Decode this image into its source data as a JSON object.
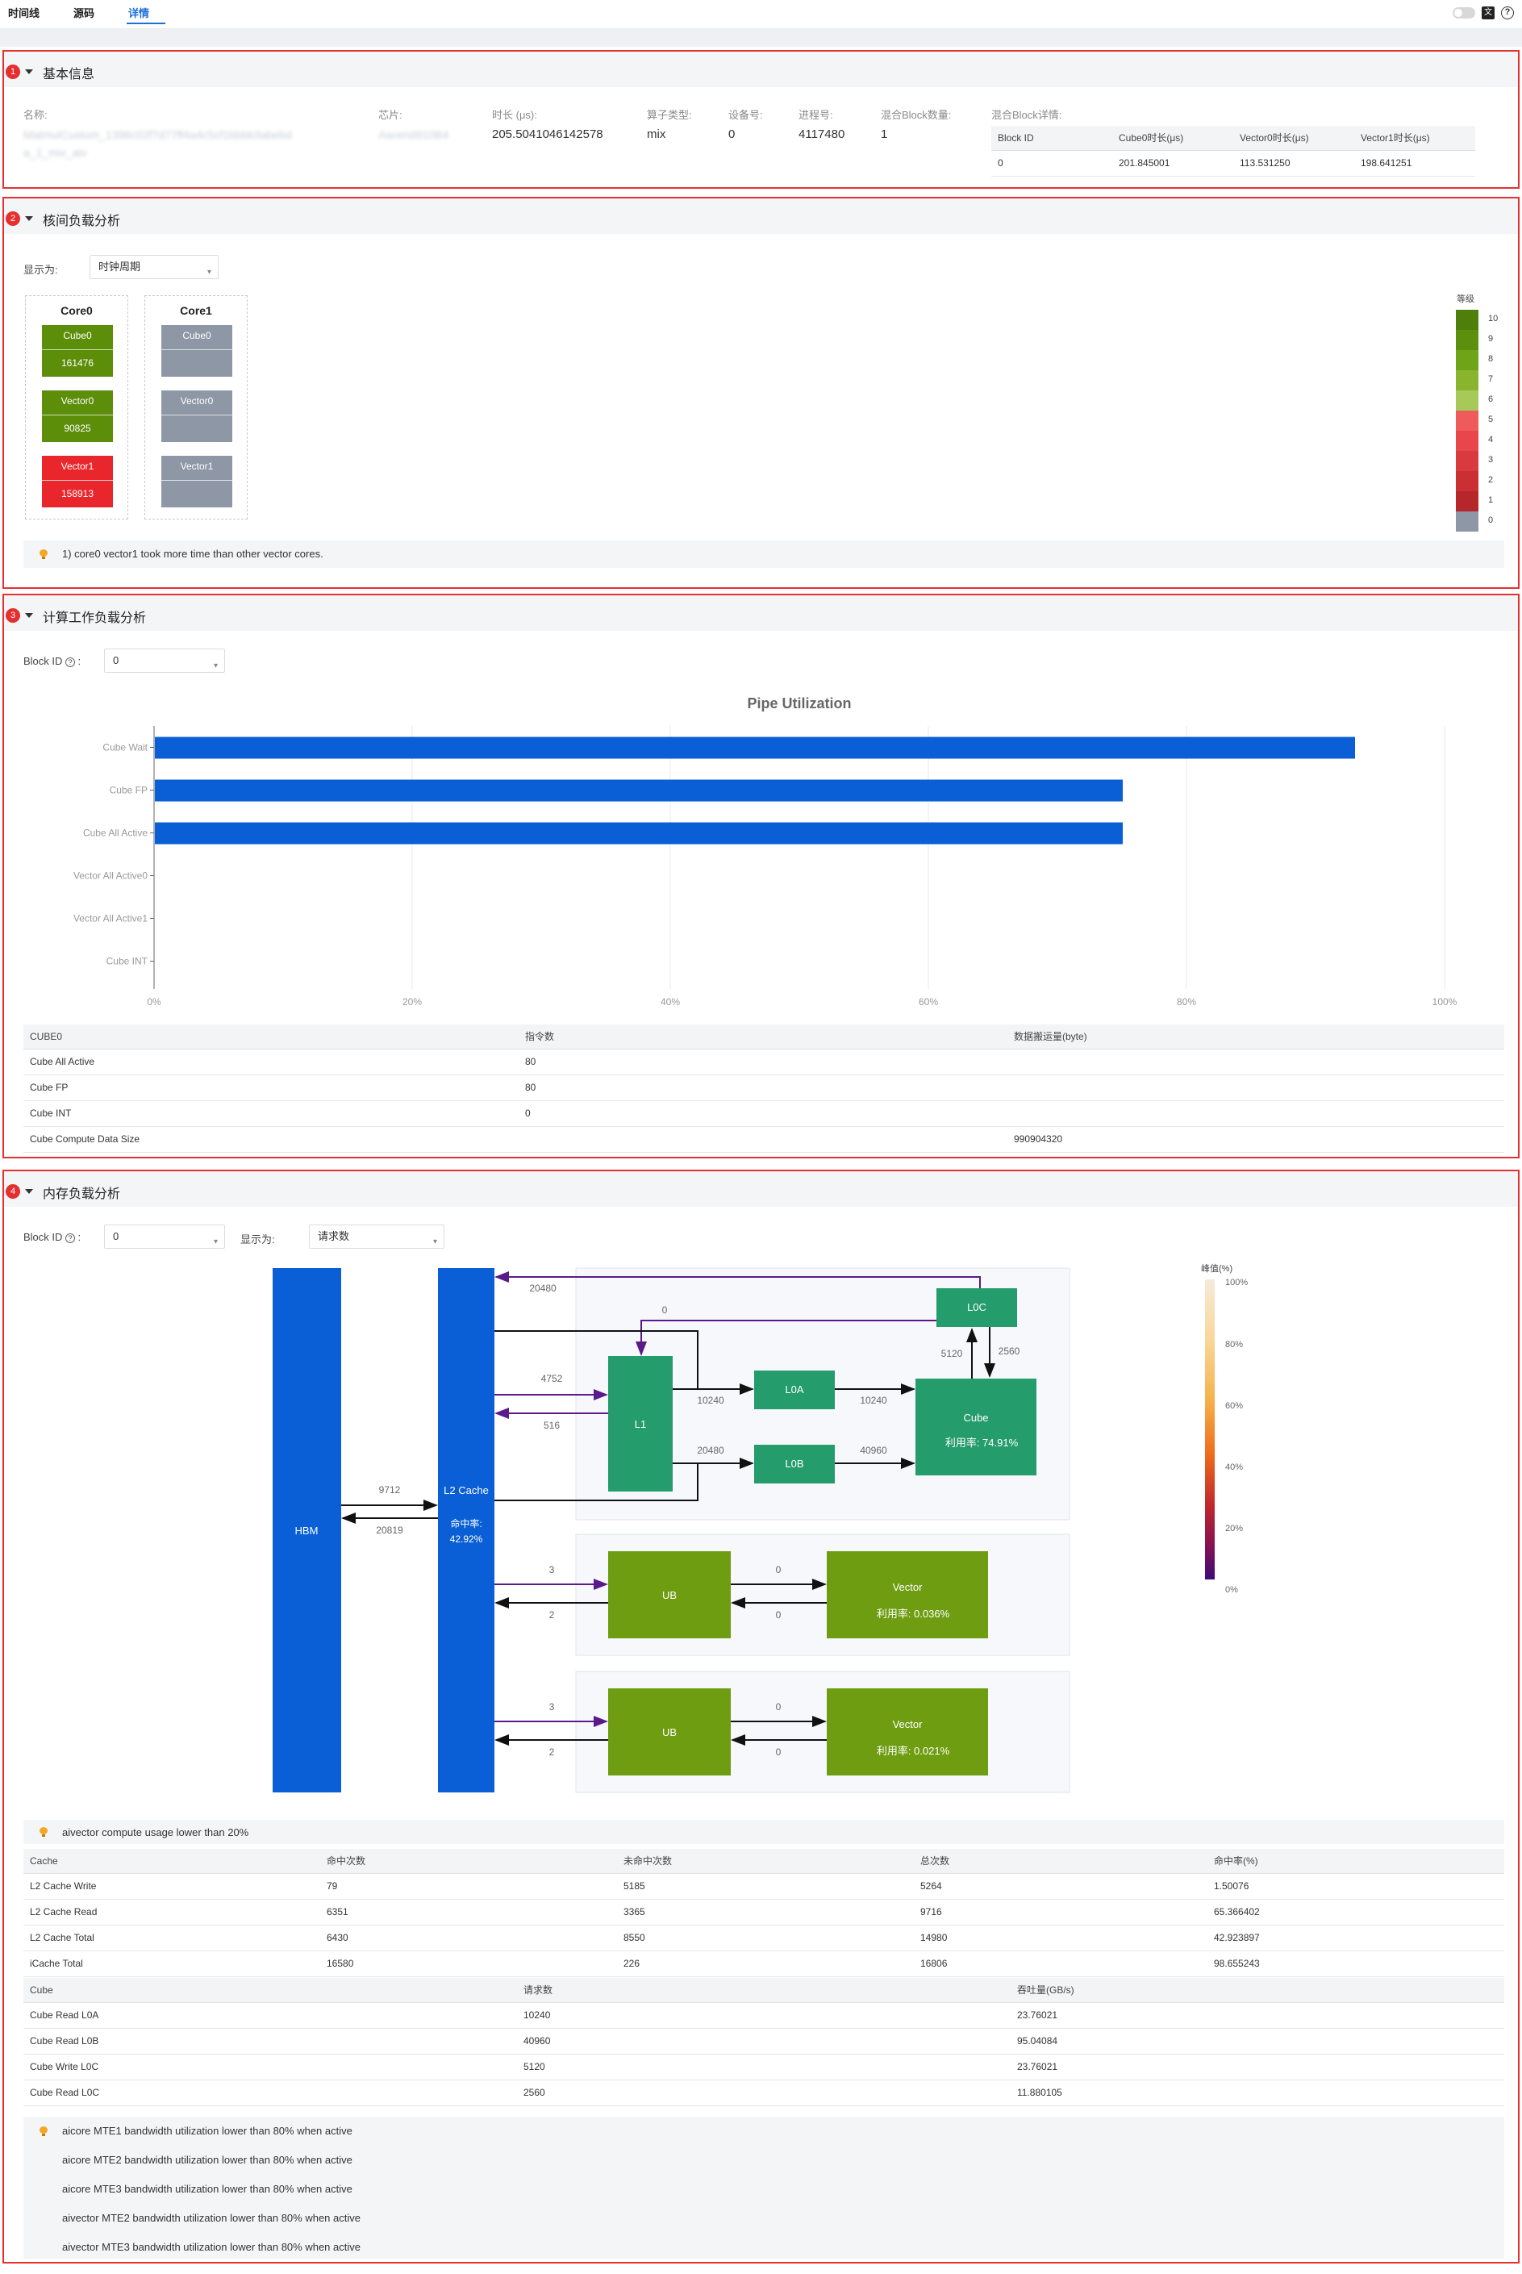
{
  "tabs": [
    "时间线",
    "源码",
    "详情"
  ],
  "active_tab": "详情",
  "sections": {
    "basic": {
      "num": "1",
      "title": "基本信息",
      "fields": {
        "name_label": "名称:",
        "name_value": "MatmulCustom_1396c02f7d77ff4a4c5cf1bbbb3abebd a_1_mix_aiv",
        "chip_label": "芯片:",
        "chip_value": "Ascend910B4",
        "duration_label": "时长 (μs):",
        "duration_value": "205.5041046142578",
        "op_type_label": "算子类型:",
        "op_type_value": "mix",
        "device_label": "设备号:",
        "device_value": "0",
        "pid_label": "进程号:",
        "pid_value": "4117480",
        "mix_count_label": "混合Block数量:",
        "mix_count_value": "1",
        "mix_detail_label": "混合Block详情:"
      },
      "block_table": {
        "headers": [
          "Block ID",
          "Cube0时长(μs)",
          "Vector0时长(μs)",
          "Vector1时长(μs)"
        ],
        "rows": [
          [
            "0",
            "201.845001",
            "113.531250",
            "198.641251"
          ]
        ]
      }
    },
    "core_load": {
      "num": "2",
      "title": "核间负载分析",
      "display_label": "显示为:",
      "display_value": "时钟周期",
      "cores": [
        {
          "title": "Core0",
          "cells": [
            {
              "name": "Cube0",
              "value": "161476",
              "color": "#5c8e0a"
            },
            {
              "name": "Vector0",
              "value": "90825",
              "color": "#5c8e0a"
            },
            {
              "name": "Vector1",
              "value": "158913",
              "color": "#e8262b"
            }
          ]
        },
        {
          "title": "Core1",
          "cells": [
            {
              "name": "Cube0",
              "value": "",
              "color": "#8e97a6"
            },
            {
              "name": "Vector0",
              "value": "",
              "color": "#8e97a6"
            },
            {
              "name": "Vector1",
              "value": "",
              "color": "#8e97a6"
            }
          ]
        }
      ],
      "legend_title": "等级",
      "legend_levels": [
        "10",
        "9",
        "8",
        "7",
        "6",
        "5",
        "4",
        "3",
        "2",
        "1",
        "0"
      ],
      "legend_colors": [
        "#4f7f0b",
        "#5d8f0f",
        "#6fa318",
        "#89b52e",
        "#a6c95a",
        "#ef5a5a",
        "#e8464a",
        "#d83a3e",
        "#c92f33",
        "#b5272b",
        "#8e97a6"
      ],
      "tip": "1) core0 vector1 took more time than other vector cores."
    },
    "compute": {
      "num": "3",
      "title": "计算工作负载分析",
      "block_label": "Block ID",
      "block_value": "0",
      "chart_data": {
        "type": "bar",
        "orientation": "horizontal",
        "title": "Pipe Utilization",
        "categories": [
          "Cube Wait",
          "Cube FP",
          "Cube All Active",
          "Vector All Active0",
          "Vector All Active1",
          "Cube INT"
        ],
        "values": [
          93,
          75,
          75,
          0,
          0,
          0
        ],
        "xlim": [
          0,
          100
        ],
        "xticks": [
          "0%",
          "20%",
          "40%",
          "60%",
          "80%",
          "100%"
        ],
        "color": "#0a5fd6",
        "grid": true
      },
      "table": {
        "headers": [
          "CUBE0",
          "指令数",
          "数据搬运量(byte)"
        ],
        "rows": [
          [
            "Cube All Active",
            "80",
            ""
          ],
          [
            "Cube FP",
            "80",
            ""
          ],
          [
            "Cube INT",
            "0",
            ""
          ],
          [
            "Cube Compute Data Size",
            "",
            "990904320"
          ]
        ]
      }
    },
    "memory": {
      "num": "4",
      "title": "内存负载分析",
      "block_label": "Block ID",
      "block_value": "0",
      "display_label": "显示为:",
      "display_value": "请求数",
      "diagram": {
        "hbm": "HBM",
        "l2_label": "L2 Cache",
        "l2_hit_label": "命中率:",
        "l2_hit": "42.92%",
        "l1": "L1",
        "l0a": "L0A",
        "l0b": "L0B",
        "l0c": "L0C",
        "cube": "Cube",
        "cube_util": "利用率: 74.91%",
        "ub1": "UB",
        "vector1": "Vector",
        "vector1_util": "利用率: 0.036%",
        "ub2": "UB",
        "vector2": "Vector",
        "vector2_util": "利用率: 0.021%",
        "n_hbm_to_l2": "9712",
        "n_l2_to_hbm": "20819",
        "n_l0c_to_l2": "20480",
        "n_l0c_to_l1": "0",
        "n_l2_to_l1": "4752",
        "n_l1_to_l2": "516",
        "n_l1_l0a": "10240",
        "n_l0a_cube": "10240",
        "n_l1_l0b": "20480",
        "n_l0b_cube": "40960",
        "n_cube_l0c": "5120",
        "n_l0c_cube": "2560",
        "n_l2_ub1": "3",
        "n_ub1_l2": "2",
        "n_ub1_vec1": "0",
        "n_vec1_ub1": "0",
        "n_l2_ub2": "3",
        "n_ub2_l2": "2",
        "n_ub2_vec2": "0",
        "n_vec2_ub2": "0"
      },
      "legend_title": "峰值(%)",
      "legend_ticks": [
        "100%",
        "80%",
        "60%",
        "40%",
        "20%",
        "0%"
      ],
      "tip1": "aivector compute usage lower than 20%",
      "cache_table": {
        "headers": [
          "Cache",
          "命中次数",
          "未命中次数",
          "总次数",
          "命中率(%)"
        ],
        "rows": [
          [
            "L2 Cache Write",
            "79",
            "5185",
            "5264",
            "1.50076"
          ],
          [
            "L2 Cache Read",
            "6351",
            "3365",
            "9716",
            "65.366402"
          ],
          [
            "L2 Cache Total",
            "6430",
            "8550",
            "14980",
            "42.923897"
          ],
          [
            "iCache Total",
            "16580",
            "226",
            "16806",
            "98.655243"
          ]
        ]
      },
      "cube_table": {
        "headers": [
          "Cube",
          "请求数",
          "吞吐量(GB/s)"
        ],
        "rows": [
          [
            "Cube Read L0A",
            "10240",
            "23.76021"
          ],
          [
            "Cube Read L0B",
            "40960",
            "95.04084"
          ],
          [
            "Cube Write L0C",
            "5120",
            "23.76021"
          ],
          [
            "Cube Read L0C",
            "2560",
            "11.880105"
          ]
        ]
      },
      "tips2": [
        "aicore MTE1 bandwidth utilization lower than 80% when active",
        "aicore MTE2 bandwidth utilization lower than 80% when active",
        "aicore MTE3 bandwidth utilization lower than 80% when active",
        "aivector MTE2 bandwidth utilization lower than 80% when active",
        "aivector MTE3 bandwidth utilization lower than 80% when active"
      ]
    }
  }
}
